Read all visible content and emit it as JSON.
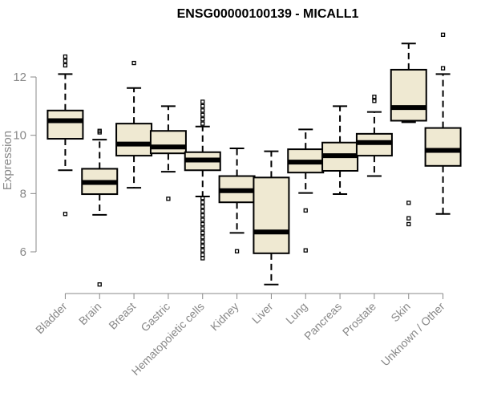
{
  "chart_data": {
    "type": "boxplot",
    "title": "ENSG00000100139 - MICALL1",
    "xlabel": "",
    "ylabel": "Expression",
    "ylim": [
      4.7,
      13.6
    ],
    "yticks": [
      6,
      8,
      10,
      12
    ],
    "colors": {
      "box_fill": "#efe9d2",
      "stroke": "#000000",
      "axis": "#888888"
    },
    "categories": [
      "Bladder",
      "Brain",
      "Breast",
      "Gastric",
      "Hematopoietic cells",
      "Kidney",
      "Liver",
      "Lung",
      "Pancreas",
      "Prostate",
      "Skin",
      "Unknown / Other"
    ],
    "boxes": [
      {
        "name": "Bladder",
        "whisker_low": 8.8,
        "q1": 9.88,
        "median": 10.5,
        "q3": 10.85,
        "whisker_high": 12.1,
        "outliers": [
          12.7,
          12.55,
          12.4,
          7.3
        ]
      },
      {
        "name": "Brain",
        "whisker_low": 7.27,
        "q1": 7.98,
        "median": 8.38,
        "q3": 8.85,
        "whisker_high": 9.85,
        "outliers": [
          10.15,
          10.1,
          4.88
        ]
      },
      {
        "name": "Breast",
        "whisker_low": 8.2,
        "q1": 9.3,
        "median": 9.7,
        "q3": 10.4,
        "whisker_high": 11.62,
        "outliers": [
          12.48
        ]
      },
      {
        "name": "Gastric",
        "whisker_low": 8.75,
        "q1": 9.38,
        "median": 9.6,
        "q3": 10.15,
        "whisker_high": 11.0,
        "outliers": [
          7.82
        ]
      },
      {
        "name": "Hematopoietic cells",
        "whisker_low": 7.9,
        "q1": 8.8,
        "median": 9.15,
        "q3": 9.42,
        "whisker_high": 10.3,
        "outliers": [
          11.15,
          11.0,
          10.85,
          10.7,
          10.55,
          10.4,
          7.85,
          7.7,
          7.55,
          7.4,
          7.25,
          7.1,
          6.95,
          6.8,
          6.65,
          6.5,
          6.35,
          6.2,
          6.05,
          5.9,
          5.78
        ]
      },
      {
        "name": "Kidney",
        "whisker_low": 6.65,
        "q1": 7.7,
        "median": 8.1,
        "q3": 8.6,
        "whisker_high": 9.55,
        "outliers": [
          6.02
        ]
      },
      {
        "name": "Liver",
        "whisker_low": 4.88,
        "q1": 5.95,
        "median": 6.68,
        "q3": 8.55,
        "whisker_high": 9.45,
        "outliers": []
      },
      {
        "name": "Lung",
        "whisker_low": 8.02,
        "q1": 8.72,
        "median": 9.08,
        "q3": 9.52,
        "whisker_high": 10.2,
        "outliers": [
          7.42,
          6.05
        ]
      },
      {
        "name": "Pancreas",
        "whisker_low": 7.98,
        "q1": 8.78,
        "median": 9.3,
        "q3": 9.75,
        "whisker_high": 11.0,
        "outliers": []
      },
      {
        "name": "Prostate",
        "whisker_low": 8.6,
        "q1": 9.3,
        "median": 9.75,
        "q3": 10.05,
        "whisker_high": 10.8,
        "outliers": [
          11.32,
          11.18
        ]
      },
      {
        "name": "Skin",
        "whisker_low": 10.45,
        "q1": 10.5,
        "median": 10.95,
        "q3": 12.25,
        "whisker_high": 13.15,
        "outliers": [
          7.68,
          7.15,
          6.95
        ]
      },
      {
        "name": "Unknown / Other",
        "whisker_low": 7.3,
        "q1": 8.95,
        "median": 9.48,
        "q3": 10.25,
        "whisker_high": 12.1,
        "outliers": [
          13.45,
          12.3
        ]
      }
    ]
  }
}
